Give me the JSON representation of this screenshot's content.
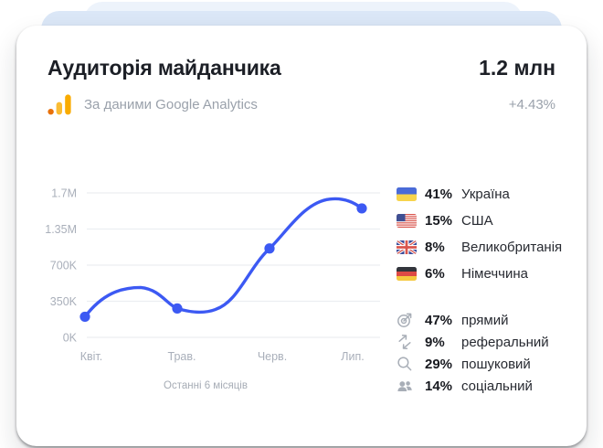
{
  "card": {
    "title": "Аудиторія майданчика",
    "total_value": "1.2 млн",
    "source_caption": "За даними Google Analytics",
    "source_icon": "google-analytics-icon",
    "growth": "+4.43%"
  },
  "chart_data": {
    "type": "line",
    "title": "",
    "categories": [
      "Квіт.",
      "Трав.",
      "Черв.",
      "Лип."
    ],
    "series": [
      {
        "name": "Аудиторія",
        "values": [
          200000,
          280000,
          1000000,
          1550000
        ]
      }
    ],
    "y_axis": {
      "tick_labels": [
        "1.7M",
        "1.35M",
        "700K",
        "350K",
        "0K"
      ],
      "tick_values": [
        1700000,
        1350000,
        700000,
        350000,
        0
      ]
    },
    "footnote": "Останні 6 місяців",
    "line_color": "#3C59F3",
    "grid": true,
    "legend": "none"
  },
  "countries": [
    {
      "icon": "ukraine-flag-icon",
      "percent": "41%",
      "name": "Україна"
    },
    {
      "icon": "usa-flag-icon",
      "percent": "15%",
      "name": "США"
    },
    {
      "icon": "uk-flag-icon",
      "percent": "8%",
      "name": "Великобританія"
    },
    {
      "icon": "germany-flag-icon",
      "percent": "6%",
      "name": "Німеччина"
    }
  ],
  "traffic_sources": [
    {
      "icon": "target-icon",
      "percent": "47%",
      "name": "прямий"
    },
    {
      "icon": "referral-arrows-icon",
      "percent": "9%",
      "name": "реферальний"
    },
    {
      "icon": "search-icon",
      "percent": "29%",
      "name": "пошуковий"
    },
    {
      "icon": "people-icon",
      "percent": "14%",
      "name": "соціальний"
    }
  ],
  "colors": {
    "accent_line": "#3C59F3",
    "card_bg": "#FFFFFF",
    "stack_layer_mid": "#DBE7F7",
    "stack_layer_back": "#EDF3FB",
    "muted_text": "#9AA1AB",
    "axis_text": "#A9AFBA",
    "ga_orange": "#F9AB00",
    "ga_orange_dark": "#E8710A"
  }
}
